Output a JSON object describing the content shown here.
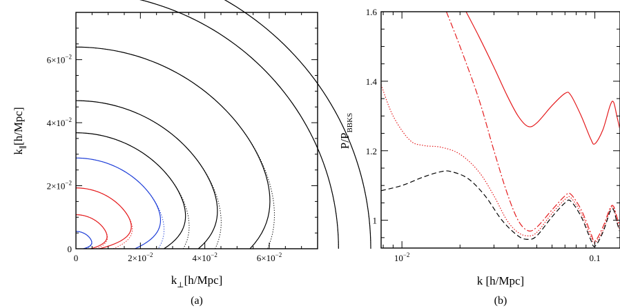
{
  "colors": {
    "black": "#000000",
    "red": "#e41a1c",
    "blue": "#1f3fd8"
  },
  "chart_data": [
    {
      "type": "line",
      "panel": "a",
      "caption": "(a)",
      "xlabel_main": "k",
      "xlabel_sub": "⊥",
      "xlabel_rest": "[h/Mpc]",
      "ylabel_main": "k",
      "ylabel_sub": "∥",
      "ylabel_rest": "[h/Mpc]",
      "xlim": [
        0,
        0.075
      ],
      "ylim": [
        0,
        0.075
      ],
      "x_ticks": [
        {
          "value": 0,
          "mantissa": "0",
          "exp": ""
        },
        {
          "value": 0.02,
          "mantissa": "2×10",
          "exp": "−2"
        },
        {
          "value": 0.04,
          "mantissa": "4×10",
          "exp": "−2"
        },
        {
          "value": 0.06,
          "mantissa": "6×10",
          "exp": "−2"
        }
      ],
      "y_ticks": [
        {
          "value": 0,
          "mantissa": "0",
          "exp": ""
        },
        {
          "value": 0.02,
          "mantissa": "2×10",
          "exp": "−2"
        },
        {
          "value": 0.04,
          "mantissa": "4×10",
          "exp": "−2"
        },
        {
          "value": 0.06,
          "mantissa": "6×10",
          "exp": "−2"
        }
      ],
      "contours": [
        {
          "color": "blue",
          "radius": 0.0055,
          "tail": 0.0032,
          "foot": 0.0025
        },
        {
          "color": "red",
          "radius": 0.0108,
          "tail": 0.0062,
          "foot": 0.0046
        },
        {
          "color": "red",
          "radius": 0.0193,
          "tail": 0.012,
          "foot": 0.0078
        },
        {
          "color": "blue",
          "radius": 0.0288,
          "tail": 0.0105,
          "foot": 0.0033
        },
        {
          "color": "black",
          "radius": 0.0368,
          "tail": 0.0095,
          "foot": 0.0035
        },
        {
          "color": "black",
          "radius": 0.047,
          "tail": 0.009,
          "foot": 0.0038
        },
        {
          "color": "black",
          "radius": 0.064,
          "tail": 0.01,
          "foot": 0.0045
        },
        {
          "color": "black",
          "radius": 0.0815,
          "tail": 0.0,
          "foot": 0.0
        },
        {
          "color": "black",
          "radius": 0.0915,
          "tail": 0.0,
          "foot": 0.0
        }
      ]
    },
    {
      "type": "line",
      "panel": "b",
      "caption": "(b)",
      "xlabel": "k  [h/Mpc]",
      "ylabel_main": "P/P",
      "ylabel_sub": "BBKS",
      "xscale": "log",
      "xlim": [
        0.0078,
        0.135
      ],
      "ylim": [
        0.92,
        1.6
      ],
      "x_ticks": [
        {
          "value": 0.01,
          "mantissa": "10",
          "exp": "−2"
        },
        {
          "value": 0.1,
          "mantissa": "0.1",
          "exp": ""
        }
      ],
      "y_ticks": [
        {
          "value": 1.0,
          "label": "1"
        },
        {
          "value": 1.2,
          "label": "1.2"
        },
        {
          "value": 1.4,
          "label": "1.4"
        },
        {
          "value": 1.6,
          "label": "1.6"
        }
      ],
      "series": [
        {
          "color": "red",
          "dash": "solid",
          "points": [
            [
              0.0215,
              1.6
            ],
            [
              0.025,
              1.53
            ],
            [
              0.03,
              1.44
            ],
            [
              0.035,
              1.36
            ],
            [
              0.04,
              1.3
            ],
            [
              0.045,
              1.27
            ],
            [
              0.05,
              1.28
            ],
            [
              0.06,
              1.33
            ],
            [
              0.07,
              1.365
            ],
            [
              0.075,
              1.36
            ],
            [
              0.085,
              1.3
            ],
            [
              0.095,
              1.235
            ],
            [
              0.1,
              1.22
            ],
            [
              0.11,
              1.26
            ],
            [
              0.12,
              1.33
            ],
            [
              0.125,
              1.34
            ],
            [
              0.13,
              1.3
            ],
            [
              0.135,
              1.26
            ]
          ]
        },
        {
          "color": "red",
          "dash": "dashdot",
          "points": [
            [
              0.017,
              1.6
            ],
            [
              0.02,
              1.5
            ],
            [
              0.025,
              1.35
            ],
            [
              0.03,
              1.2
            ],
            [
              0.035,
              1.08
            ],
            [
              0.04,
              1.0
            ],
            [
              0.045,
              0.97
            ],
            [
              0.05,
              0.98
            ],
            [
              0.06,
              1.03
            ],
            [
              0.07,
              1.07
            ],
            [
              0.075,
              1.075
            ],
            [
              0.085,
              1.03
            ],
            [
              0.095,
              0.965
            ],
            [
              0.1,
              0.94
            ],
            [
              0.11,
              0.98
            ],
            [
              0.12,
              1.035
            ],
            [
              0.125,
              1.04
            ],
            [
              0.13,
              1.01
            ],
            [
              0.135,
              0.98
            ]
          ]
        },
        {
          "color": "red",
          "dash": "dotted",
          "points": [
            [
              0.0078,
              1.39
            ],
            [
              0.009,
              1.3
            ],
            [
              0.011,
              1.23
            ],
            [
              0.013,
              1.215
            ],
            [
              0.016,
              1.21
            ],
            [
              0.02,
              1.19
            ],
            [
              0.025,
              1.14
            ],
            [
              0.03,
              1.07
            ],
            [
              0.035,
              1.0
            ],
            [
              0.04,
              0.965
            ],
            [
              0.045,
              0.955
            ],
            [
              0.05,
              0.965
            ],
            [
              0.06,
              1.02
            ],
            [
              0.07,
              1.06
            ],
            [
              0.075,
              1.065
            ],
            [
              0.085,
              1.02
            ],
            [
              0.095,
              0.955
            ],
            [
              0.1,
              0.935
            ],
            [
              0.11,
              0.97
            ],
            [
              0.12,
              1.03
            ],
            [
              0.125,
              1.035
            ],
            [
              0.13,
              1.0
            ],
            [
              0.135,
              0.97
            ]
          ]
        },
        {
          "color": "black",
          "dash": "dashed",
          "points": [
            [
              0.0078,
              1.085
            ],
            [
              0.01,
              1.1
            ],
            [
              0.013,
              1.125
            ],
            [
              0.016,
              1.14
            ],
            [
              0.018,
              1.14
            ],
            [
              0.022,
              1.12
            ],
            [
              0.027,
              1.07
            ],
            [
              0.033,
              1.0
            ],
            [
              0.04,
              0.955
            ],
            [
              0.045,
              0.945
            ],
            [
              0.05,
              0.955
            ],
            [
              0.06,
              1.01
            ],
            [
              0.07,
              1.05
            ],
            [
              0.075,
              1.055
            ],
            [
              0.085,
              1.01
            ],
            [
              0.095,
              0.945
            ],
            [
              0.1,
              0.925
            ],
            [
              0.11,
              0.965
            ],
            [
              0.12,
              1.025
            ],
            [
              0.125,
              1.03
            ],
            [
              0.13,
              0.995
            ],
            [
              0.135,
              0.965
            ]
          ]
        }
      ]
    }
  ]
}
